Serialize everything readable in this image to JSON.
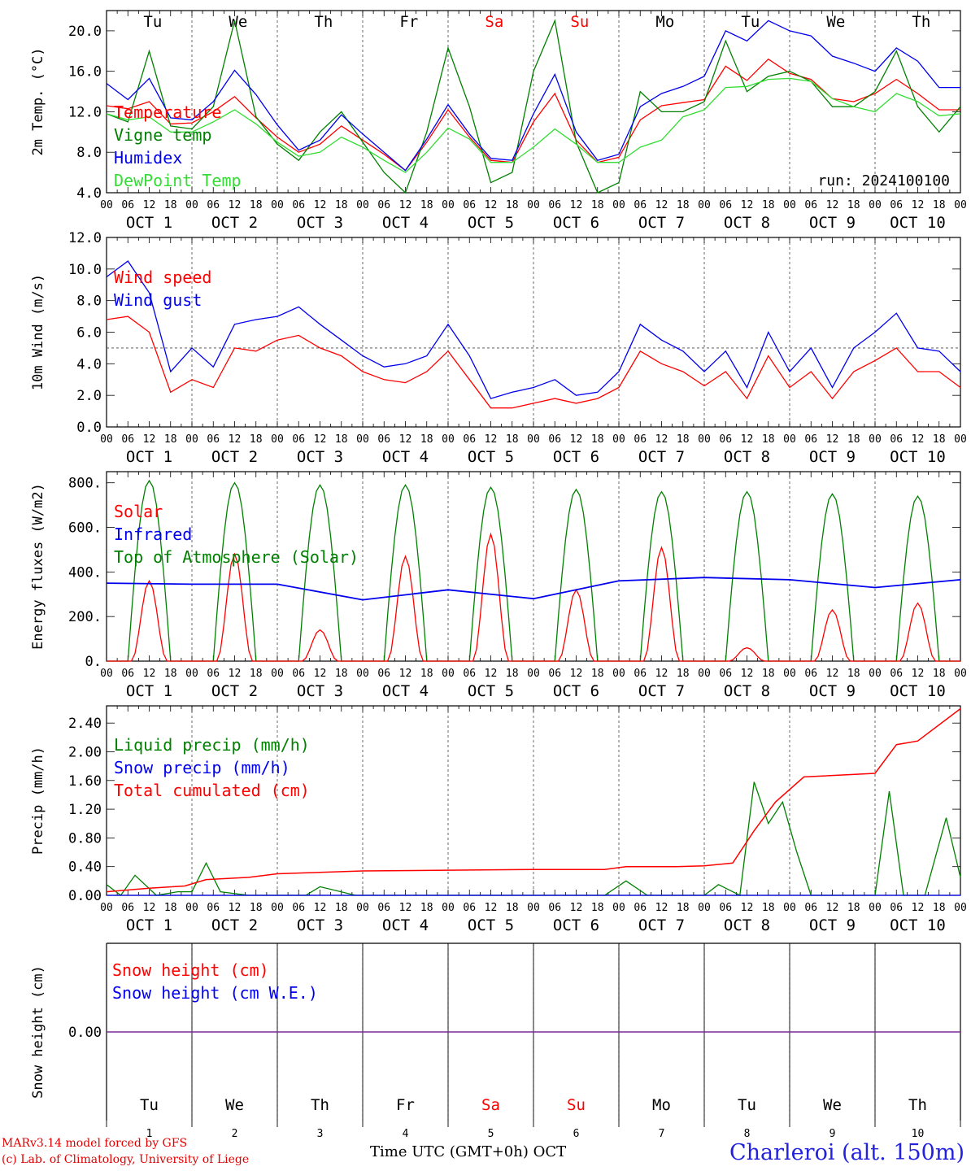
{
  "header": {
    "credit_line1": "MARv3.14 model forced by GFS",
    "credit_line2": "(c) Lab. of Climatology, University of Liege",
    "station": "Charleroi (alt. 150m)",
    "x_axis_title": "Time UTC (GMT+0h) OCT"
  },
  "colors": {
    "red": "#ff0000",
    "blue": "#0000ee",
    "green": "#008000",
    "lightgreen": "#33dd33",
    "purple": "#7a2a9a",
    "weekend": "#ff0000"
  },
  "chart_data": [
    {
      "type": "line",
      "ylabel": "2m Temp. (°C)",
      "ylim": [
        4,
        22
      ],
      "yticks": [
        "4.0",
        "8.0",
        "12.0",
        "16.0",
        "20.0"
      ],
      "annotation": "run: 2024100100",
      "weekday_labels": [
        "Tu",
        "We",
        "Th",
        "Fr",
        "Sa",
        "Su",
        "Mo",
        "Tu",
        "We",
        "Th"
      ],
      "date_labels": [
        "OCT  1",
        "OCT  2",
        "OCT  3",
        "OCT  4",
        "OCT  5",
        "OCT  6",
        "OCT  7",
        "OCT  8",
        "OCT  9",
        "OCT 10"
      ],
      "hour_labels": [
        "00",
        "06",
        "12",
        "18"
      ],
      "x_hours": [
        0,
        6,
        12,
        18,
        24,
        30,
        36,
        42,
        48,
        54,
        60,
        66,
        72,
        78,
        84,
        90,
        96,
        102,
        108,
        114,
        120,
        126,
        132,
        138,
        144,
        150,
        156,
        162,
        168,
        174,
        180,
        186,
        192,
        198,
        204,
        210,
        216,
        222,
        228,
        234,
        240
      ],
      "series": [
        {
          "name": "Temperature",
          "color": "red",
          "values": [
            12.6,
            12.3,
            13.0,
            10.8,
            10.9,
            12.0,
            13.5,
            11.4,
            9.5,
            8.0,
            8.8,
            10.6,
            9.2,
            7.8,
            6.2,
            9.0,
            12.2,
            9.5,
            7.2,
            7.0,
            11.0,
            13.8,
            9.2,
            7.0,
            7.5,
            11.2,
            12.6,
            12.9,
            13.2,
            16.5,
            15.1,
            17.2,
            15.8,
            15.2,
            13.3,
            13.0,
            13.8,
            15.2,
            13.8,
            12.2,
            12.2
          ]
        },
        {
          "name": "Vigne temp",
          "color": "green",
          "values": [
            11.8,
            11.0,
            18.0,
            10.6,
            10.3,
            12.5,
            21.0,
            11.5,
            8.8,
            7.2,
            10.0,
            12.0,
            9.0,
            6.0,
            4.0,
            10.0,
            18.3,
            12.5,
            5.0,
            6.0,
            16.0,
            21.0,
            9.0,
            4.0,
            5.0,
            14.0,
            12.0,
            12.0,
            13.0,
            19.0,
            14.0,
            15.5,
            16.0,
            15.0,
            12.5,
            12.5,
            14.0,
            18.0,
            12.5,
            10.0,
            12.5
          ]
        },
        {
          "name": "Humidex",
          "color": "blue",
          "values": [
            14.8,
            13.2,
            15.3,
            11.4,
            11.2,
            13.0,
            16.1,
            13.7,
            10.7,
            8.2,
            9.2,
            11.7,
            9.8,
            8.0,
            6.2,
            9.3,
            12.7,
            9.8,
            7.4,
            7.2,
            11.8,
            15.7,
            10.0,
            7.2,
            7.8,
            12.5,
            13.8,
            14.5,
            15.5,
            20.0,
            19.0,
            21.0,
            20.0,
            19.5,
            17.5,
            16.8,
            16.0,
            18.3,
            17.0,
            14.4,
            14.4
          ]
        },
        {
          "name": "DewPoint Temp",
          "color": "lightgreen",
          "values": [
            11.8,
            11.2,
            11.5,
            10.0,
            10.0,
            11.0,
            12.2,
            10.8,
            9.0,
            7.6,
            8.0,
            9.5,
            8.5,
            7.2,
            6.0,
            8.0,
            10.4,
            9.3,
            7.0,
            7.0,
            8.5,
            10.3,
            8.8,
            7.0,
            7.0,
            8.5,
            9.2,
            11.5,
            12.2,
            14.4,
            14.5,
            15.2,
            15.3,
            15.0,
            13.3,
            12.5,
            12.0,
            13.8,
            13.0,
            11.6,
            11.8
          ]
        }
      ]
    },
    {
      "type": "line",
      "ylabel": "10m Wind (m/s)",
      "ylim": [
        0,
        12
      ],
      "yticks": [
        "0.0",
        "2.0",
        "4.0",
        "6.0",
        "8.0",
        "10.0",
        "12.0"
      ],
      "reference_line": 5.0,
      "date_labels": [
        "OCT  1",
        "OCT  2",
        "OCT  3",
        "OCT  4",
        "OCT  5",
        "OCT  6",
        "OCT  7",
        "OCT  8",
        "OCT  9",
        "OCT 10"
      ],
      "hour_labels": [
        "00",
        "06",
        "12",
        "18"
      ],
      "x_hours": [
        0,
        6,
        12,
        18,
        24,
        30,
        36,
        42,
        48,
        54,
        60,
        66,
        72,
        78,
        84,
        90,
        96,
        102,
        108,
        114,
        120,
        126,
        132,
        138,
        144,
        150,
        156,
        162,
        168,
        174,
        180,
        186,
        192,
        198,
        204,
        210,
        216,
        222,
        228,
        234,
        240
      ],
      "series": [
        {
          "name": "Wind speed",
          "color": "red",
          "values": [
            6.8,
            7.0,
            6.0,
            2.2,
            3.0,
            2.5,
            5.0,
            4.8,
            5.5,
            5.8,
            5.0,
            4.5,
            3.5,
            3.0,
            2.8,
            3.5,
            4.8,
            3.0,
            1.2,
            1.2,
            1.5,
            1.8,
            1.5,
            1.8,
            2.5,
            4.8,
            4.0,
            3.5,
            2.6,
            3.5,
            1.8,
            4.5,
            2.5,
            3.5,
            1.8,
            3.5,
            4.2,
            5.0,
            3.5,
            3.5,
            2.5
          ]
        },
        {
          "name": "Wind gust",
          "color": "blue",
          "values": [
            9.5,
            10.5,
            8.5,
            3.5,
            5.0,
            3.8,
            6.5,
            6.8,
            7.0,
            7.6,
            6.5,
            5.5,
            4.5,
            3.8,
            4.0,
            4.5,
            6.5,
            4.5,
            1.8,
            2.2,
            2.5,
            3.0,
            2.0,
            2.2,
            3.5,
            6.5,
            5.5,
            4.8,
            3.5,
            4.8,
            2.5,
            6.0,
            3.5,
            5.0,
            2.5,
            5.0,
            6.0,
            7.2,
            5.0,
            4.8,
            3.5
          ]
        }
      ]
    },
    {
      "type": "line",
      "ylabel": "Energy fluxes (W/m2)",
      "ylim": [
        0,
        850
      ],
      "yticks": [
        "0.",
        "200.",
        "400.",
        "600.",
        "800."
      ],
      "date_labels": [
        "OCT  1",
        "OCT  2",
        "OCT  3",
        "OCT  4",
        "OCT  5",
        "OCT  6",
        "OCT  7",
        "OCT  8",
        "OCT  9",
        "OCT 10"
      ],
      "hour_labels": [
        "00",
        "06",
        "12",
        "18"
      ],
      "daily_solar_peak": [
        360,
        480,
        140,
        470,
        570,
        320,
        510,
        60,
        230,
        260
      ],
      "daily_toa_peak": [
        810,
        800,
        790,
        790,
        780,
        770,
        760,
        760,
        750,
        740
      ],
      "infrared": {
        "x_days": [
          0,
          1,
          2,
          3,
          4,
          5,
          6,
          7,
          8,
          9,
          10
        ],
        "values": [
          350,
          345,
          345,
          275,
          320,
          280,
          360,
          375,
          365,
          330,
          365
        ]
      },
      "series": [
        {
          "name": "Solar",
          "color": "red"
        },
        {
          "name": "Infrared",
          "color": "blue"
        },
        {
          "name": "Top of Atmosphere (Solar)",
          "color": "green"
        }
      ]
    },
    {
      "type": "line",
      "ylabel": "Precip (mm/h)",
      "ylim": [
        0,
        2.64
      ],
      "yticks": [
        "0.00",
        "0.40",
        "0.80",
        "1.20",
        "1.60",
        "2.00",
        "2.40"
      ],
      "date_labels": [
        "OCT  1",
        "OCT  2",
        "OCT  3",
        "OCT  4",
        "OCT  5",
        "OCT  6",
        "OCT  7",
        "OCT  8",
        "OCT  9",
        "OCT 10"
      ],
      "hour_labels": [
        "00",
        "06",
        "12",
        "18"
      ],
      "series": [
        {
          "name": "Liquid precip (mm/h)",
          "color": "green",
          "x_hours": [
            0,
            4,
            8,
            14,
            20,
            24,
            28,
            32,
            40,
            48,
            56,
            60,
            70,
            96,
            120,
            140,
            146,
            152,
            168,
            172,
            178,
            182,
            186,
            190,
            194,
            198,
            202,
            206,
            210,
            216,
            220,
            224,
            226,
            230,
            236,
            240,
            226,
            232,
            236,
            240
          ],
          "values": [
            0.15,
            0.0,
            0.28,
            0.0,
            0.05,
            0.05,
            0.45,
            0.05,
            0.0,
            0.0,
            0.0,
            0.12,
            0.0,
            0.0,
            0.0,
            0.0,
            0.2,
            0.0,
            0.0,
            0.15,
            0.0,
            1.58,
            1.0,
            1.3,
            0.6,
            0.0,
            0.0,
            0.0,
            0.0,
            0.0,
            1.45,
            0.0,
            0.0,
            0.0,
            1.08,
            0.25,
            0.0,
            0.0,
            0.0,
            0.0
          ]
        },
        {
          "name": "Snow precip (mm/h)",
          "color": "blue",
          "values": [
            0.0
          ]
        },
        {
          "name": "Total cumulated (cm)",
          "color": "red",
          "x_hours": [
            0,
            12,
            22,
            28,
            40,
            48,
            60,
            72,
            96,
            120,
            140,
            146,
            160,
            168,
            176,
            182,
            188,
            196,
            216,
            222,
            228,
            240
          ],
          "values": [
            0.05,
            0.1,
            0.13,
            0.22,
            0.25,
            0.3,
            0.32,
            0.34,
            0.35,
            0.36,
            0.36,
            0.4,
            0.4,
            0.41,
            0.45,
            0.9,
            1.3,
            1.65,
            1.7,
            2.1,
            2.15,
            2.6
          ]
        }
      ]
    },
    {
      "type": "line",
      "ylabel": "Snow height (cm)",
      "ylim": [
        -1,
        1
      ],
      "yticks": [
        "0.00"
      ],
      "weekday_labels": [
        "Tu",
        "We",
        "Th",
        "Fr",
        "Sa",
        "Su",
        "Mo",
        "Tu",
        "We",
        "Th"
      ],
      "day_numbers": [
        "1",
        "2",
        "3",
        "4",
        "5",
        "6",
        "7",
        "8",
        "9",
        "10"
      ],
      "series": [
        {
          "name": "Snow height (cm)",
          "color": "red",
          "values": [
            0.0
          ]
        },
        {
          "name": "Snow height (cm W.E.)",
          "color": "blue",
          "values": [
            0.0
          ]
        }
      ]
    }
  ]
}
